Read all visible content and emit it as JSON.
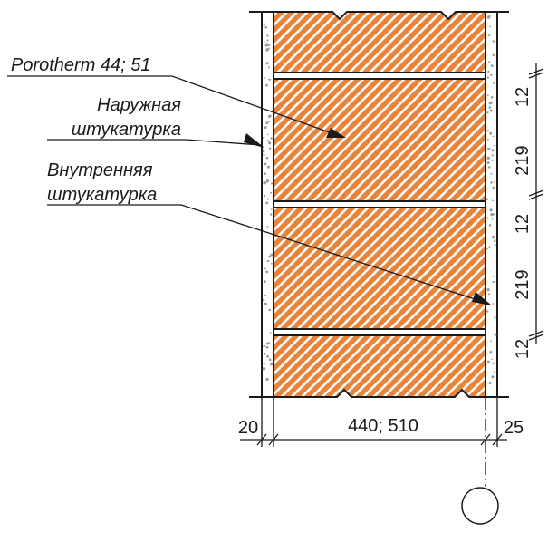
{
  "labels": {
    "brick": "Porotherm 44; 51",
    "outer_1": "Наружная",
    "outer_2": "штукатурка",
    "inner_1": "Внутренняя",
    "inner_2": "штукатурка"
  },
  "dimensions": {
    "left_plaster": "20",
    "wall": "440; 510",
    "right_plaster": "25",
    "joint_a": "12",
    "row_a": "219",
    "joint_b": "12",
    "row_b": "219",
    "joint_c": "12"
  },
  "colors": {
    "brick_fill": "#e8833a",
    "hatch": "#ffffff",
    "line": "#1a1a1a",
    "plaster_dots": "#9a9a9a"
  }
}
